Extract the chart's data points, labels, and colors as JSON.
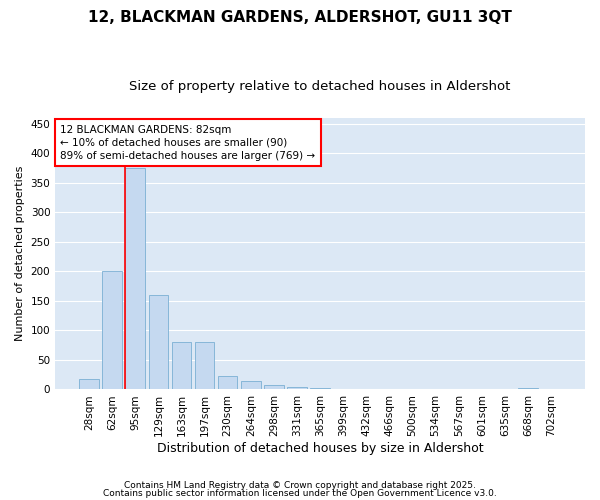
{
  "title": "12, BLACKMAN GARDENS, ALDERSHOT, GU11 3QT",
  "subtitle": "Size of property relative to detached houses in Aldershot",
  "xlabel": "Distribution of detached houses by size in Aldershot",
  "ylabel": "Number of detached properties",
  "categories": [
    "28sqm",
    "62sqm",
    "95sqm",
    "129sqm",
    "163sqm",
    "197sqm",
    "230sqm",
    "264sqm",
    "298sqm",
    "331sqm",
    "365sqm",
    "399sqm",
    "432sqm",
    "466sqm",
    "500sqm",
    "534sqm",
    "567sqm",
    "601sqm",
    "635sqm",
    "668sqm",
    "702sqm"
  ],
  "values": [
    18,
    201,
    375,
    160,
    80,
    80,
    22,
    15,
    7,
    5,
    2,
    1,
    0,
    0,
    0,
    0,
    0,
    0,
    0,
    2,
    0
  ],
  "bar_color": "#c5d9f0",
  "bar_edge_color": "#7bafd4",
  "plot_bg_color": "#dce8f5",
  "fig_bg_color": "#ffffff",
  "grid_color": "#ffffff",
  "vline_x": 2,
  "vline_color": "red",
  "annotation_text": "12 BLACKMAN GARDENS: 82sqm\n← 10% of detached houses are smaller (90)\n89% of semi-detached houses are larger (769) →",
  "ylim": [
    0,
    460
  ],
  "yticks": [
    0,
    50,
    100,
    150,
    200,
    250,
    300,
    350,
    400,
    450
  ],
  "footer1": "Contains HM Land Registry data © Crown copyright and database right 2025.",
  "footer2": "Contains public sector information licensed under the Open Government Licence v3.0.",
  "title_fontsize": 11,
  "subtitle_fontsize": 9.5,
  "xlabel_fontsize": 9,
  "ylabel_fontsize": 8,
  "tick_fontsize": 7.5,
  "annotation_fontsize": 7.5,
  "footer_fontsize": 6.5
}
